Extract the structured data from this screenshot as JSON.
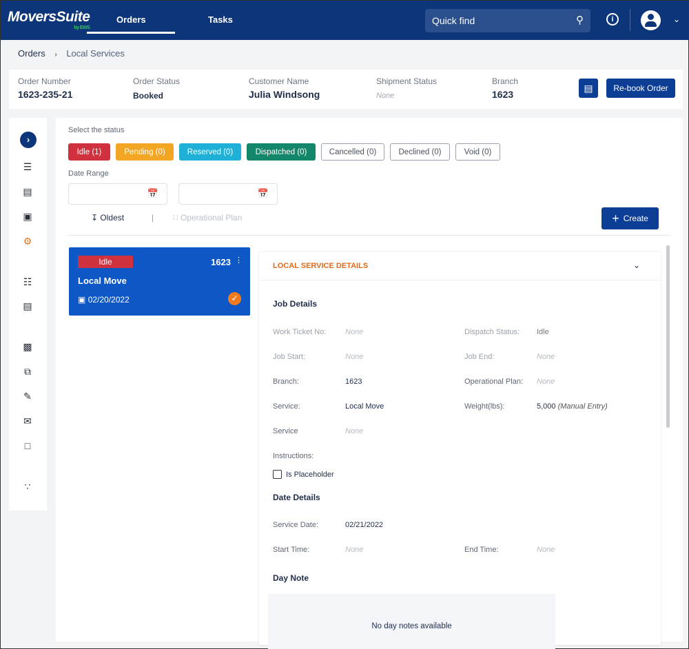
{
  "header": {
    "logo": "MoversSuite",
    "logo_sub": "by EWS",
    "tabs": [
      "Orders",
      "Tasks"
    ],
    "active_tab": "Orders",
    "quick_find_placeholder": "Quick find",
    "icons": [
      "search-icon",
      "info-icon",
      "user-avatar-icon",
      "chevron-down-icon"
    ]
  },
  "breadcrumb": [
    "Orders",
    "Local Services"
  ],
  "order": {
    "fields": [
      {
        "label": "Order Number",
        "value": "1623-235-21"
      },
      {
        "label": "Order Status",
        "value": "Booked"
      },
      {
        "label": "Customer Name",
        "value": "Julia Windsong"
      },
      {
        "label": "Shipment Status",
        "value": "None"
      },
      {
        "label": "Branch",
        "value": "1623"
      }
    ],
    "rebook_label": "Re-book Order"
  },
  "sidebar": {
    "icons": [
      "expand-icon",
      "list-settings-icon",
      "document-icon",
      "contact-card-icon",
      "gears-icon",
      "list-icon",
      "newspaper-icon",
      "monitor-icon",
      "files-icon",
      "clipboard-edit-icon",
      "mail-icon",
      "chat-icon",
      "network-icon"
    ],
    "active": "gears-icon"
  },
  "filters": {
    "status_label": "Select the status",
    "statuses": [
      {
        "label": "Idle (1)",
        "color": "#d0313e"
      },
      {
        "label": "Pending (0)",
        "color": "#f2a623"
      },
      {
        "label": "Reserved (0)",
        "color": "#1fb0d8"
      },
      {
        "label": "Dispatched (0)",
        "color": "#13876a"
      },
      {
        "label": "Cancelled (0)"
      },
      {
        "label": "Declined (0)"
      },
      {
        "label": "Void (0)"
      }
    ],
    "date_range_label": "Date Range",
    "from_value": "",
    "to_value": "",
    "sort_label": "Oldest",
    "op_plan_label": "Operational Plan",
    "create_label": "Create"
  },
  "card": {
    "status": "Idle",
    "branch": "1623",
    "title": "Local Move",
    "date": "02/20/2022"
  },
  "details": {
    "section_title": "LOCAL SERVICE DETAILS",
    "job_title": "Job Details",
    "left": [
      {
        "k": "Work Ticket No:",
        "v": "None"
      },
      {
        "k": "Job Start:",
        "v": "None"
      },
      {
        "k": "Branch:",
        "v": "1623"
      },
      {
        "k": "Service:",
        "v": "Local Move"
      },
      {
        "k": "Service",
        "v": "None"
      }
    ],
    "right": [
      {
        "k": "Dispatch Status:",
        "v": "Idle"
      },
      {
        "k": "Job End:",
        "v": "None"
      },
      {
        "k": "Operational Plan:",
        "v": "None"
      },
      {
        "k": "Weight(lbs):",
        "v": "5,000",
        "note": "(Manual Entry)"
      }
    ],
    "instructions_label": "Instructions:",
    "placeholder_label": "Is Placeholder",
    "placeholder_checked": false,
    "date_title": "Date Details",
    "service_date_label": "Service Date:",
    "service_date": "02/21/2022",
    "start_time_label": "Start Time:",
    "start_time": "None",
    "end_time_label": "End Time:",
    "end_time": "None",
    "day_note_title": "Day Note",
    "day_note_empty": "No day notes available"
  }
}
